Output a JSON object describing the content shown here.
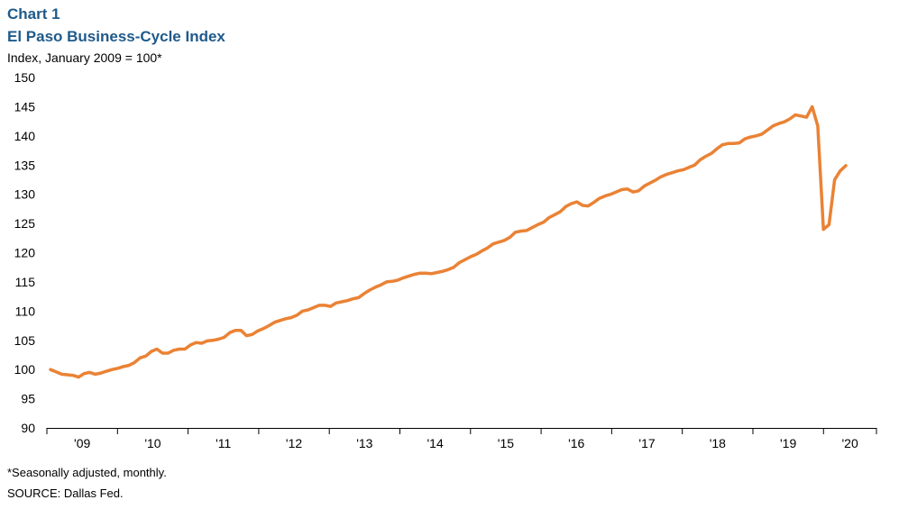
{
  "header": {
    "chart_label": "Chart 1",
    "title": "El Paso Business-Cycle Index",
    "subtitle": "Index,  January 2009 = 100*"
  },
  "footer": {
    "note": "*Seasonally adjusted, monthly.",
    "source": "SOURCE: Dallas Fed."
  },
  "colors": {
    "line": "#ea8235",
    "title": "#1f5a8a",
    "axis": "#000000"
  },
  "chart_data": {
    "type": "line",
    "title": "El Paso Business-Cycle Index",
    "ylabel": "Index,  January 2009 = 100*",
    "xlabel": "",
    "ylim": [
      90,
      150
    ],
    "yticks": [
      "90",
      "95",
      "100",
      "105",
      "110",
      "115",
      "120",
      "125",
      "130",
      "135",
      "140",
      "145",
      "150"
    ],
    "xtick_labels": [
      "'09",
      "'10",
      "'11",
      "'12",
      "'13",
      "'14",
      "'15",
      "'16",
      "'17",
      "'18",
      "'19",
      "'20"
    ],
    "grid": false,
    "legend": "none",
    "x_start": "2009-01",
    "x_end": "2020-09",
    "series": [
      {
        "values": [
          100.0,
          99.6,
          99.2,
          99.1,
          99.0,
          98.7,
          99.3,
          99.5,
          99.2,
          99.4,
          99.7,
          100.0,
          100.2,
          100.5,
          100.7,
          101.2,
          102.0,
          102.3,
          103.1,
          103.5,
          102.8,
          102.8,
          103.3,
          103.5,
          103.5,
          104.2,
          104.6,
          104.5,
          104.9,
          105.0,
          105.2,
          105.5,
          106.3,
          106.7,
          106.7,
          105.8,
          106.0,
          106.6,
          107.0,
          107.5,
          108.1,
          108.4,
          108.7,
          108.9,
          109.3,
          110.0,
          110.2,
          110.6,
          111.0,
          111.0,
          110.8,
          111.4,
          111.6,
          111.8,
          112.1,
          112.3,
          113.0,
          113.6,
          114.1,
          114.5,
          115.0,
          115.1,
          115.3,
          115.7,
          116.0,
          116.3,
          116.5,
          116.5,
          116.4,
          116.6,
          116.8,
          117.1,
          117.5,
          118.3,
          118.8,
          119.3,
          119.7,
          120.3,
          120.8,
          121.5,
          121.8,
          122.1,
          122.6,
          123.5,
          123.7,
          123.8,
          124.3,
          124.8,
          125.2,
          126.0,
          126.5,
          127.0,
          127.9,
          128.4,
          128.7,
          128.1,
          128.0,
          128.6,
          129.3,
          129.7,
          130.0,
          130.4,
          130.8,
          130.9,
          130.4,
          130.6,
          131.4,
          131.9,
          132.4,
          133.0,
          133.4,
          133.7,
          134.0,
          134.2,
          134.6,
          135.0,
          135.9,
          136.5,
          137.0,
          137.8,
          138.5,
          138.7,
          138.7,
          138.8,
          139.5,
          139.8,
          140.0,
          140.3,
          141.0,
          141.7,
          142.1,
          142.4,
          142.9,
          143.6,
          143.4,
          143.2,
          145.0,
          141.7,
          124.0,
          124.8,
          132.5,
          134.0,
          134.9
        ]
      }
    ]
  }
}
